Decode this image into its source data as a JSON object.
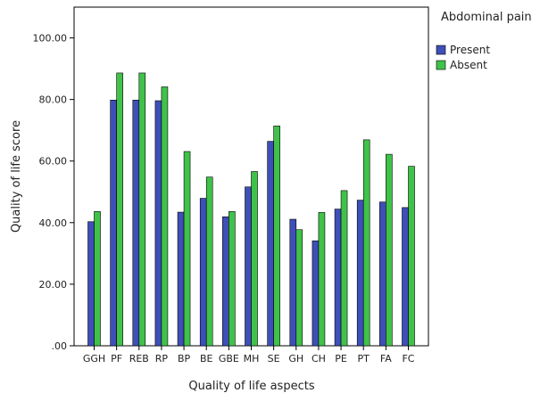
{
  "chart_data": {
    "type": "bar",
    "title": "",
    "xlabel": "Quality of life aspects",
    "ylabel": "Quality of life score",
    "ylim": [
      0,
      110
    ],
    "yticks": [
      0,
      20,
      40,
      60,
      80,
      100
    ],
    "ytick_labels": [
      ".00",
      "20.00",
      "40.00",
      "60.00",
      "80.00",
      "100.00"
    ],
    "grid": false,
    "legend_position": "right",
    "legend_title": "Abdominal pain",
    "categories": [
      "GGH",
      "PF",
      "REB",
      "RP",
      "BP",
      "BE",
      "GBE",
      "MH",
      "SE",
      "GH",
      "CH",
      "PE",
      "PT",
      "FA",
      "FC"
    ],
    "series": [
      {
        "name": "Present",
        "color": "#3F4FB8",
        "values": [
          40.3,
          79.8,
          79.8,
          79.6,
          43.4,
          47.9,
          41.9,
          51.6,
          66.4,
          41.1,
          34.1,
          44.4,
          47.3,
          46.7,
          44.9
        ]
      },
      {
        "name": "Absent",
        "color": "#40C24A",
        "values": [
          43.6,
          88.6,
          88.6,
          84.1,
          63.1,
          54.8,
          43.6,
          56.6,
          71.4,
          37.7,
          43.3,
          50.4,
          66.9,
          62.2,
          58.3
        ]
      }
    ]
  }
}
